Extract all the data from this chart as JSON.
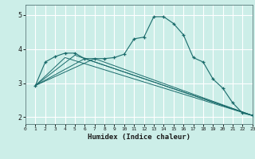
{
  "xlabel": "Humidex (Indice chaleur)",
  "ylabel": "",
  "bg_color": "#cceee8",
  "line_color": "#1a6b6b",
  "grid_color": "#ffffff",
  "xlim": [
    0,
    23
  ],
  "ylim": [
    1.8,
    5.3
  ],
  "yticks": [
    2,
    3,
    4,
    5
  ],
  "xticks": [
    0,
    1,
    2,
    3,
    4,
    5,
    6,
    7,
    8,
    9,
    10,
    11,
    12,
    13,
    14,
    15,
    16,
    17,
    18,
    19,
    20,
    21,
    22,
    23
  ],
  "series": [
    {
      "x": [
        1,
        2,
        3,
        4,
        5,
        6,
        7,
        8,
        9,
        10,
        11,
        12,
        13,
        14,
        15,
        16,
        17,
        18,
        19,
        20,
        21,
        22,
        23
      ],
      "y": [
        2.93,
        3.62,
        3.78,
        3.88,
        3.88,
        3.72,
        3.72,
        3.72,
        3.75,
        3.85,
        4.3,
        4.35,
        4.95,
        4.95,
        4.75,
        4.42,
        3.75,
        3.62,
        3.12,
        2.85,
        2.42,
        2.12,
        2.05
      ]
    },
    {
      "x": [
        1,
        4,
        23
      ],
      "y": [
        2.93,
        3.75,
        2.05
      ]
    },
    {
      "x": [
        1,
        5,
        23
      ],
      "y": [
        2.93,
        3.82,
        2.05
      ]
    },
    {
      "x": [
        1,
        6,
        23
      ],
      "y": [
        2.93,
        3.72,
        2.05
      ]
    },
    {
      "x": [
        1,
        7,
        23
      ],
      "y": [
        2.93,
        3.72,
        2.05
      ]
    }
  ]
}
